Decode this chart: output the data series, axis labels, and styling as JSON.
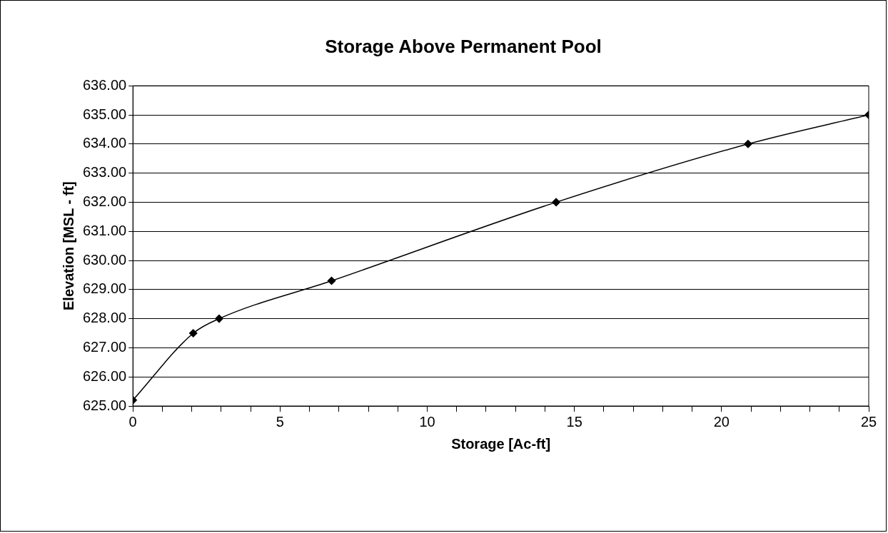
{
  "chart_data": {
    "type": "line",
    "title": "Storage Above Permanent Pool",
    "xlabel": "Storage [Ac-ft]",
    "ylabel": "Elevation [MSL - ft]",
    "x": [
      0,
      2.05,
      2.93,
      6.75,
      14.38,
      20.9,
      25
    ],
    "series": [
      {
        "color": "#000000",
        "values": [
          625.2,
          627.5,
          628,
          629.3,
          632,
          634,
          635
        ]
      }
    ],
    "xlim": [
      0,
      25
    ],
    "xticks": [
      0,
      {
        "value": 1,
        "label": null
      },
      {
        "value": 2,
        "label": null
      },
      {
        "value": 3,
        "label": null
      },
      {
        "value": 4,
        "label": null
      },
      5,
      {
        "value": 6,
        "label": null
      },
      {
        "value": 7,
        "label": null
      },
      {
        "value": 8,
        "label": null
      },
      {
        "value": 9,
        "label": null
      },
      10,
      {
        "value": 11,
        "label": null
      },
      {
        "value": 12,
        "label": null
      },
      {
        "value": 13,
        "label": null
      },
      {
        "value": 14,
        "label": null
      },
      15,
      {
        "value": 16,
        "label": null
      },
      {
        "value": 17,
        "label": null
      },
      {
        "value": 18,
        "label": null
      },
      {
        "value": 19,
        "label": null
      },
      20,
      {
        "value": 21,
        "label": null
      },
      {
        "value": 22,
        "label": null
      },
      {
        "value": 23,
        "label": null
      },
      {
        "value": 24,
        "label": null
      },
      25
    ],
    "ylim": [
      625,
      636
    ],
    "yticks": [
      {
        "value": 625,
        "label": "625.00"
      },
      {
        "value": 626,
        "label": "626.00"
      },
      {
        "value": 627,
        "label": "627.00"
      },
      {
        "value": 628,
        "label": "628.00"
      },
      {
        "value": 629,
        "label": "629.00"
      },
      {
        "value": 630,
        "label": "630.00"
      },
      {
        "value": 631,
        "label": "631.00"
      },
      {
        "value": 632,
        "label": "632.00"
      },
      {
        "value": 633,
        "label": "633.00"
      },
      {
        "value": 634,
        "label": "634.00"
      },
      {
        "value": 635,
        "label": "635.00"
      },
      {
        "value": 636,
        "label": "636.00"
      }
    ],
    "grid": "y",
    "legend": false,
    "marker": "diamond",
    "line_style": "solid"
  }
}
